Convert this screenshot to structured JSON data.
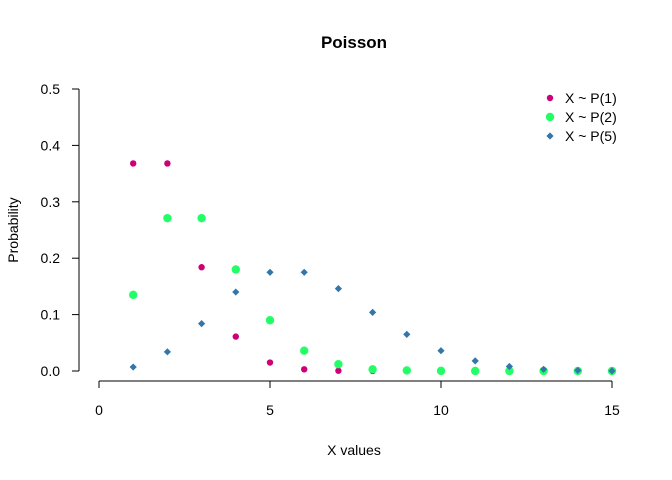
{
  "chart_data": {
    "type": "scatter",
    "title": "Poisson",
    "xlabel": "X values",
    "ylabel": "Probability",
    "xlim": [
      0,
      15
    ],
    "ylim": [
      0,
      0.5
    ],
    "xticks": [
      "0",
      "5",
      "10",
      "15"
    ],
    "yticks": [
      "0.0",
      "0.1",
      "0.2",
      "0.3",
      "0.4",
      "0.5"
    ],
    "grid": false,
    "legend_position": "top-right",
    "series": [
      {
        "name": "X ~ P(1)",
        "color": "#CC0077",
        "marker": "circle",
        "x": [
          1,
          2,
          3,
          4,
          5,
          6,
          7,
          8,
          9,
          10,
          11,
          12,
          13,
          14,
          15
        ],
        "y": [
          0.368,
          0.368,
          0.184,
          0.061,
          0.015,
          0.003,
          0.0005,
          0.0001,
          0.0,
          0.0,
          0.0,
          0.0,
          0.0,
          0.0,
          0.0
        ]
      },
      {
        "name": "X ~ P(2)",
        "color": "#22FF66",
        "marker": "circle-large",
        "x": [
          1,
          2,
          3,
          4,
          5,
          6,
          7,
          8,
          9,
          10,
          11,
          12,
          13,
          14,
          15
        ],
        "y": [
          0.135,
          0.271,
          0.271,
          0.18,
          0.09,
          0.036,
          0.012,
          0.003,
          0.001,
          0.0002,
          0.0,
          0.0,
          0.0,
          0.0,
          0.0
        ]
      },
      {
        "name": "X ~ P(5)",
        "color": "#3377AA",
        "marker": "diamond",
        "x": [
          1,
          2,
          3,
          4,
          5,
          6,
          7,
          8,
          9,
          10,
          11,
          12,
          13,
          14,
          15
        ],
        "y": [
          0.007,
          0.034,
          0.084,
          0.14,
          0.175,
          0.175,
          0.146,
          0.104,
          0.065,
          0.036,
          0.018,
          0.008,
          0.003,
          0.001,
          0.0002
        ]
      }
    ]
  }
}
